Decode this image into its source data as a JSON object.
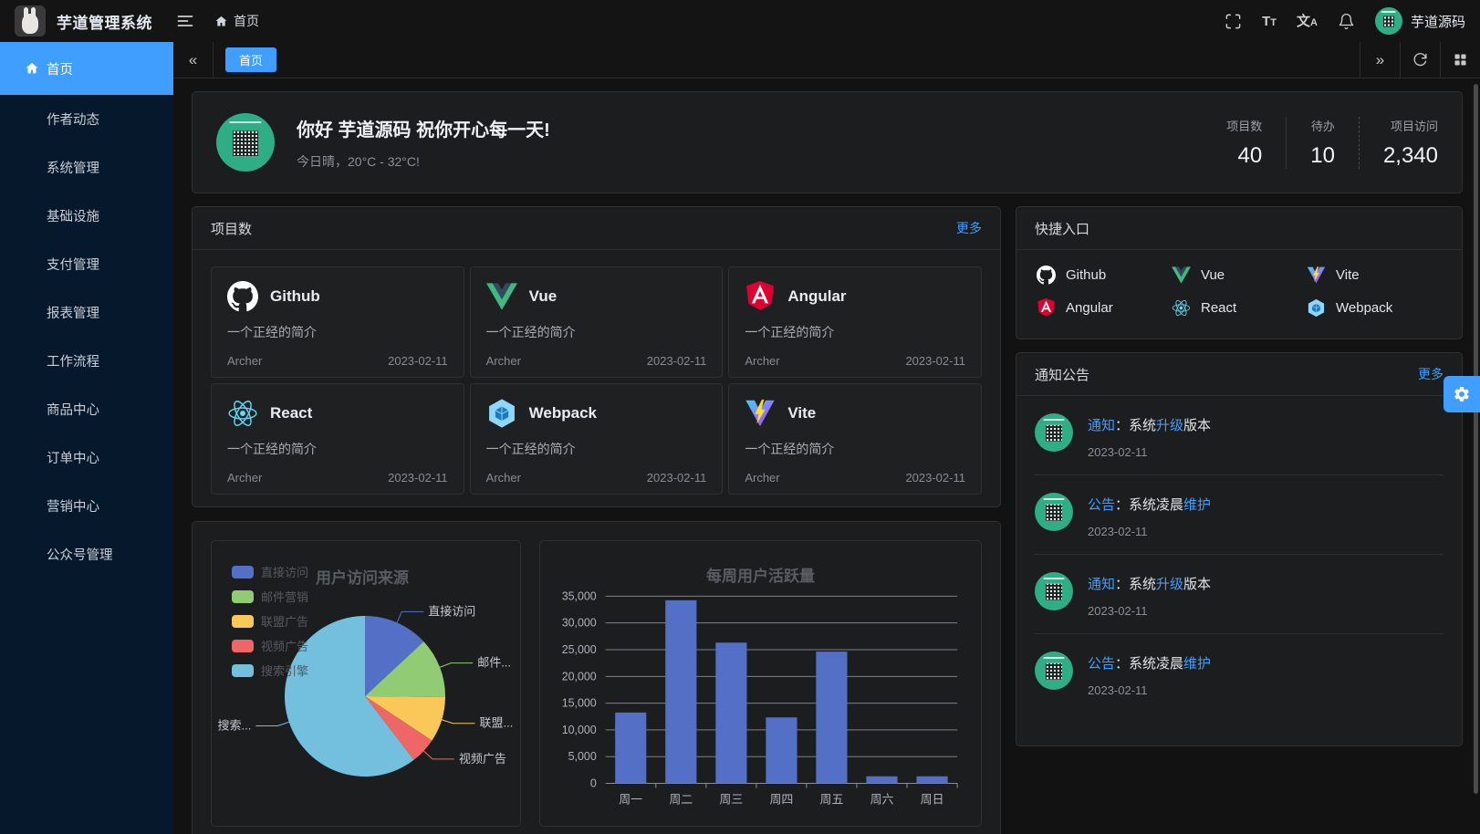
{
  "topbar": {
    "title": "芋道管理系统",
    "breadcrumb": "首页",
    "username": "芋道源码",
    "icons": [
      "hamburger-icon",
      "home-icon",
      "fullscreen-icon",
      "font-size-icon",
      "language-icon",
      "bell-icon"
    ]
  },
  "tabbar": {
    "tabs": [
      {
        "label": "首页",
        "active": true
      }
    ],
    "icons": [
      "collapse-left-icon",
      "expand-right-icon",
      "refresh-icon",
      "grid-icon"
    ]
  },
  "sidebar": {
    "items": [
      {
        "key": "home",
        "label": "首页",
        "active": true,
        "icon": "home-icon",
        "arrow": false
      },
      {
        "key": "author",
        "label": "作者动态",
        "active": false,
        "arrow": false
      },
      {
        "key": "system",
        "label": "系统管理",
        "active": false,
        "arrow": true
      },
      {
        "key": "infra",
        "label": "基础设施",
        "active": false,
        "arrow": true
      },
      {
        "key": "pay",
        "label": "支付管理",
        "active": false,
        "arrow": true
      },
      {
        "key": "report",
        "label": "报表管理",
        "active": false,
        "arrow": true
      },
      {
        "key": "workflow",
        "label": "工作流程",
        "active": false,
        "arrow": true
      },
      {
        "key": "product",
        "label": "商品中心",
        "active": false,
        "arrow": true
      },
      {
        "key": "order",
        "label": "订单中心",
        "active": false,
        "arrow": true
      },
      {
        "key": "marketing",
        "label": "营销中心",
        "active": false,
        "arrow": true
      },
      {
        "key": "mp",
        "label": "公众号管理",
        "active": false,
        "arrow": true
      }
    ]
  },
  "welcome": {
    "greeting": "你好 芋道源码 祝你开心每一天!",
    "weather": "今日晴，20°C - 32°C!",
    "stats": [
      {
        "label": "项目数",
        "value": "40",
        "divider": "none"
      },
      {
        "label": "待办",
        "value": "10",
        "divider": "solid"
      },
      {
        "label": "项目访问",
        "value": "2,340",
        "divider": "dashed"
      }
    ]
  },
  "projects": {
    "title": "项目数",
    "more_label": "更多",
    "cards": [
      {
        "name": "Github",
        "icon": "github-icon",
        "desc": "一个正经的简介",
        "author": "Archer",
        "date": "2023-02-11"
      },
      {
        "name": "Vue",
        "icon": "vue-icon",
        "desc": "一个正经的简介",
        "author": "Archer",
        "date": "2023-02-11"
      },
      {
        "name": "Angular",
        "icon": "angular-icon",
        "desc": "一个正经的简介",
        "author": "Archer",
        "date": "2023-02-11"
      },
      {
        "name": "React",
        "icon": "react-icon",
        "desc": "一个正经的简介",
        "author": "Archer",
        "date": "2023-02-11"
      },
      {
        "name": "Webpack",
        "icon": "webpack-icon",
        "desc": "一个正经的简介",
        "author": "Archer",
        "date": "2023-02-11"
      },
      {
        "name": "Vite",
        "icon": "vite-icon",
        "desc": "一个正经的简介",
        "author": "Archer",
        "date": "2023-02-11"
      }
    ]
  },
  "shortcuts": {
    "title": "快捷入口",
    "items": [
      {
        "name": "Github",
        "icon": "github-icon"
      },
      {
        "name": "Vue",
        "icon": "vue-icon"
      },
      {
        "name": "Vite",
        "icon": "vite-icon"
      },
      {
        "name": "Angular",
        "icon": "angular-icon"
      },
      {
        "name": "React",
        "icon": "react-icon"
      },
      {
        "name": "Webpack",
        "icon": "webpack-icon"
      }
    ]
  },
  "notices": {
    "title": "通知公告",
    "more_label": "更多",
    "items": [
      {
        "segments": [
          {
            "t": "通知",
            "a": true
          },
          {
            "t": "：系统",
            "a": false
          },
          {
            "t": "升级",
            "a": true
          },
          {
            "t": "版本",
            "a": false
          }
        ],
        "date": "2023-02-11"
      },
      {
        "segments": [
          {
            "t": "公告",
            "a": true
          },
          {
            "t": "：系统凌晨",
            "a": false
          },
          {
            "t": "维护",
            "a": true
          }
        ],
        "date": "2023-02-11"
      },
      {
        "segments": [
          {
            "t": "通知",
            "a": true
          },
          {
            "t": "：系统",
            "a": false
          },
          {
            "t": "升级",
            "a": true
          },
          {
            "t": "版本",
            "a": false
          }
        ],
        "date": "2023-02-11"
      },
      {
        "segments": [
          {
            "t": "公告",
            "a": true
          },
          {
            "t": "：系统凌晨",
            "a": false
          },
          {
            "t": "维护",
            "a": true
          }
        ],
        "date": "2023-02-11"
      }
    ]
  },
  "chart_data": [
    {
      "type": "pie",
      "title": "用户访问来源",
      "legend_position": "top-left",
      "series": [
        {
          "name": "直接访问",
          "value": 335
        },
        {
          "name": "邮件营销",
          "value": 310
        },
        {
          "name": "联盟广告",
          "value": 234
        },
        {
          "name": "视频广告",
          "value": 135
        },
        {
          "name": "搜索引擎",
          "value": 1548
        }
      ],
      "display_labels": [
        "直接访问",
        "邮件...",
        "联盟...",
        "视频广告",
        "搜索..."
      ],
      "colors": [
        "#5470c6",
        "#91cc75",
        "#fac858",
        "#ee6666",
        "#73c0de"
      ]
    },
    {
      "type": "bar",
      "title": "每周用户活跃量",
      "categories": [
        "周一",
        "周二",
        "周三",
        "周四",
        "周五",
        "周六",
        "周日"
      ],
      "values": [
        13253,
        34235,
        26321,
        12340,
        24643,
        1322,
        1324
      ],
      "ylim": [
        0,
        35000
      ],
      "ytick_step": 5000,
      "bar_color": "#5470c6",
      "grid": true,
      "legend_position": "none"
    }
  ],
  "colors": {
    "accent": "#409eff",
    "sidebar_bg": "#06192c",
    "topbar_bg": "#141414",
    "page_bg": "#121212",
    "panel_bg": "#1c1d1e",
    "avatar_green": "#2fae85"
  }
}
